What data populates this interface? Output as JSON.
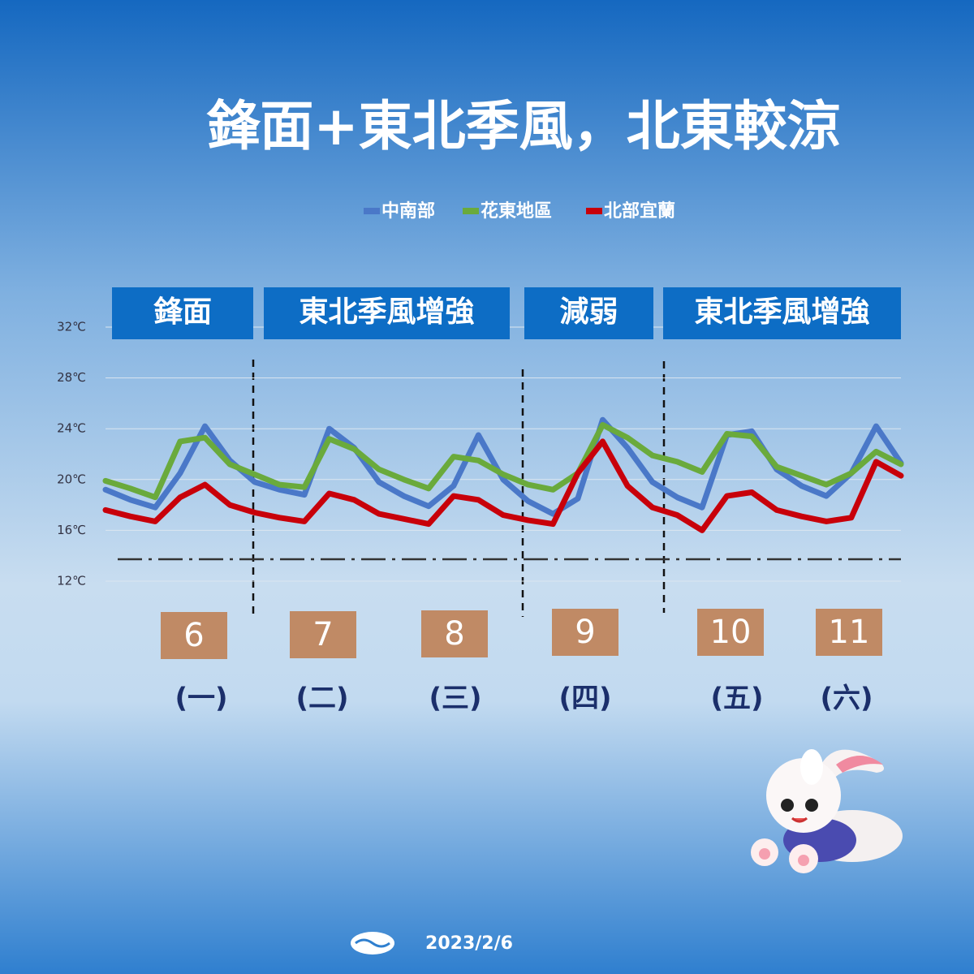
{
  "chart_data": {
    "type": "line",
    "title": "鋒面+東北季風，北東較涼",
    "categories": [
      null,
      null,
      null,
      null,
      null,
      null,
      null,
      null,
      null,
      null,
      null,
      null,
      null,
      null,
      null,
      null,
      null,
      null,
      null,
      null,
      null,
      null,
      null,
      null,
      null,
      null,
      null,
      null,
      null,
      null,
      null,
      null,
      null
    ],
    "series": [
      {
        "name": "中南部",
        "color": "#4a78c8",
        "values": [
          19.2,
          18.4,
          17.8,
          20.5,
          24.2,
          21.5,
          19.8,
          19.2,
          18.8,
          24.0,
          22.5,
          19.8,
          18.7,
          17.9,
          19.5,
          23.5,
          20.0,
          18.3,
          17.3,
          18.5,
          24.7,
          22.5,
          19.8,
          18.6,
          17.8,
          23.5,
          23.8,
          20.8,
          19.5,
          18.7,
          20.5,
          24.2,
          21.3
        ]
      },
      {
        "name": "花東地區",
        "color": "#6aaa3c",
        "values": [
          19.9,
          19.3,
          18.6,
          23.0,
          23.3,
          21.2,
          20.4,
          19.6,
          19.4,
          23.2,
          22.4,
          20.8,
          20.0,
          19.3,
          21.8,
          21.5,
          20.4,
          19.6,
          19.2,
          20.5,
          24.3,
          23.3,
          21.9,
          21.4,
          20.6,
          23.6,
          23.4,
          21.0,
          20.3,
          19.6,
          20.5,
          22.2,
          21.2
        ]
      },
      {
        "name": "北部宜蘭",
        "color": "#c8000a",
        "values": [
          17.6,
          17.1,
          16.7,
          18.6,
          19.6,
          18.0,
          17.4,
          17.0,
          16.7,
          18.9,
          18.4,
          17.3,
          16.9,
          16.5,
          18.7,
          18.4,
          17.2,
          16.8,
          16.5,
          20.5,
          23.0,
          19.5,
          17.8,
          17.2,
          16.0,
          18.7,
          19.0,
          17.6,
          17.1,
          16.7,
          17.0,
          21.4,
          20.3
        ]
      }
    ],
    "ylim": [
      12,
      32
    ],
    "yticks": [
      {
        "value": 12,
        "label": "12℃"
      },
      {
        "value": 16,
        "label": "16℃"
      },
      {
        "value": 20,
        "label": "20℃"
      },
      {
        "value": 24,
        "label": "24℃"
      },
      {
        "value": 28,
        "label": "28℃"
      },
      {
        "value": 32,
        "label": "32℃"
      }
    ],
    "grid": true,
    "phases": [
      "鋒面",
      "東北季風增強",
      "減弱",
      "東北季風增強"
    ],
    "days": [
      "6",
      "7",
      "8",
      "9",
      "10",
      "11"
    ],
    "weekdays": [
      "(一)",
      "(二)",
      "(三)",
      "(四)",
      "(五)",
      "(六)"
    ],
    "date": "2023/2/6"
  }
}
